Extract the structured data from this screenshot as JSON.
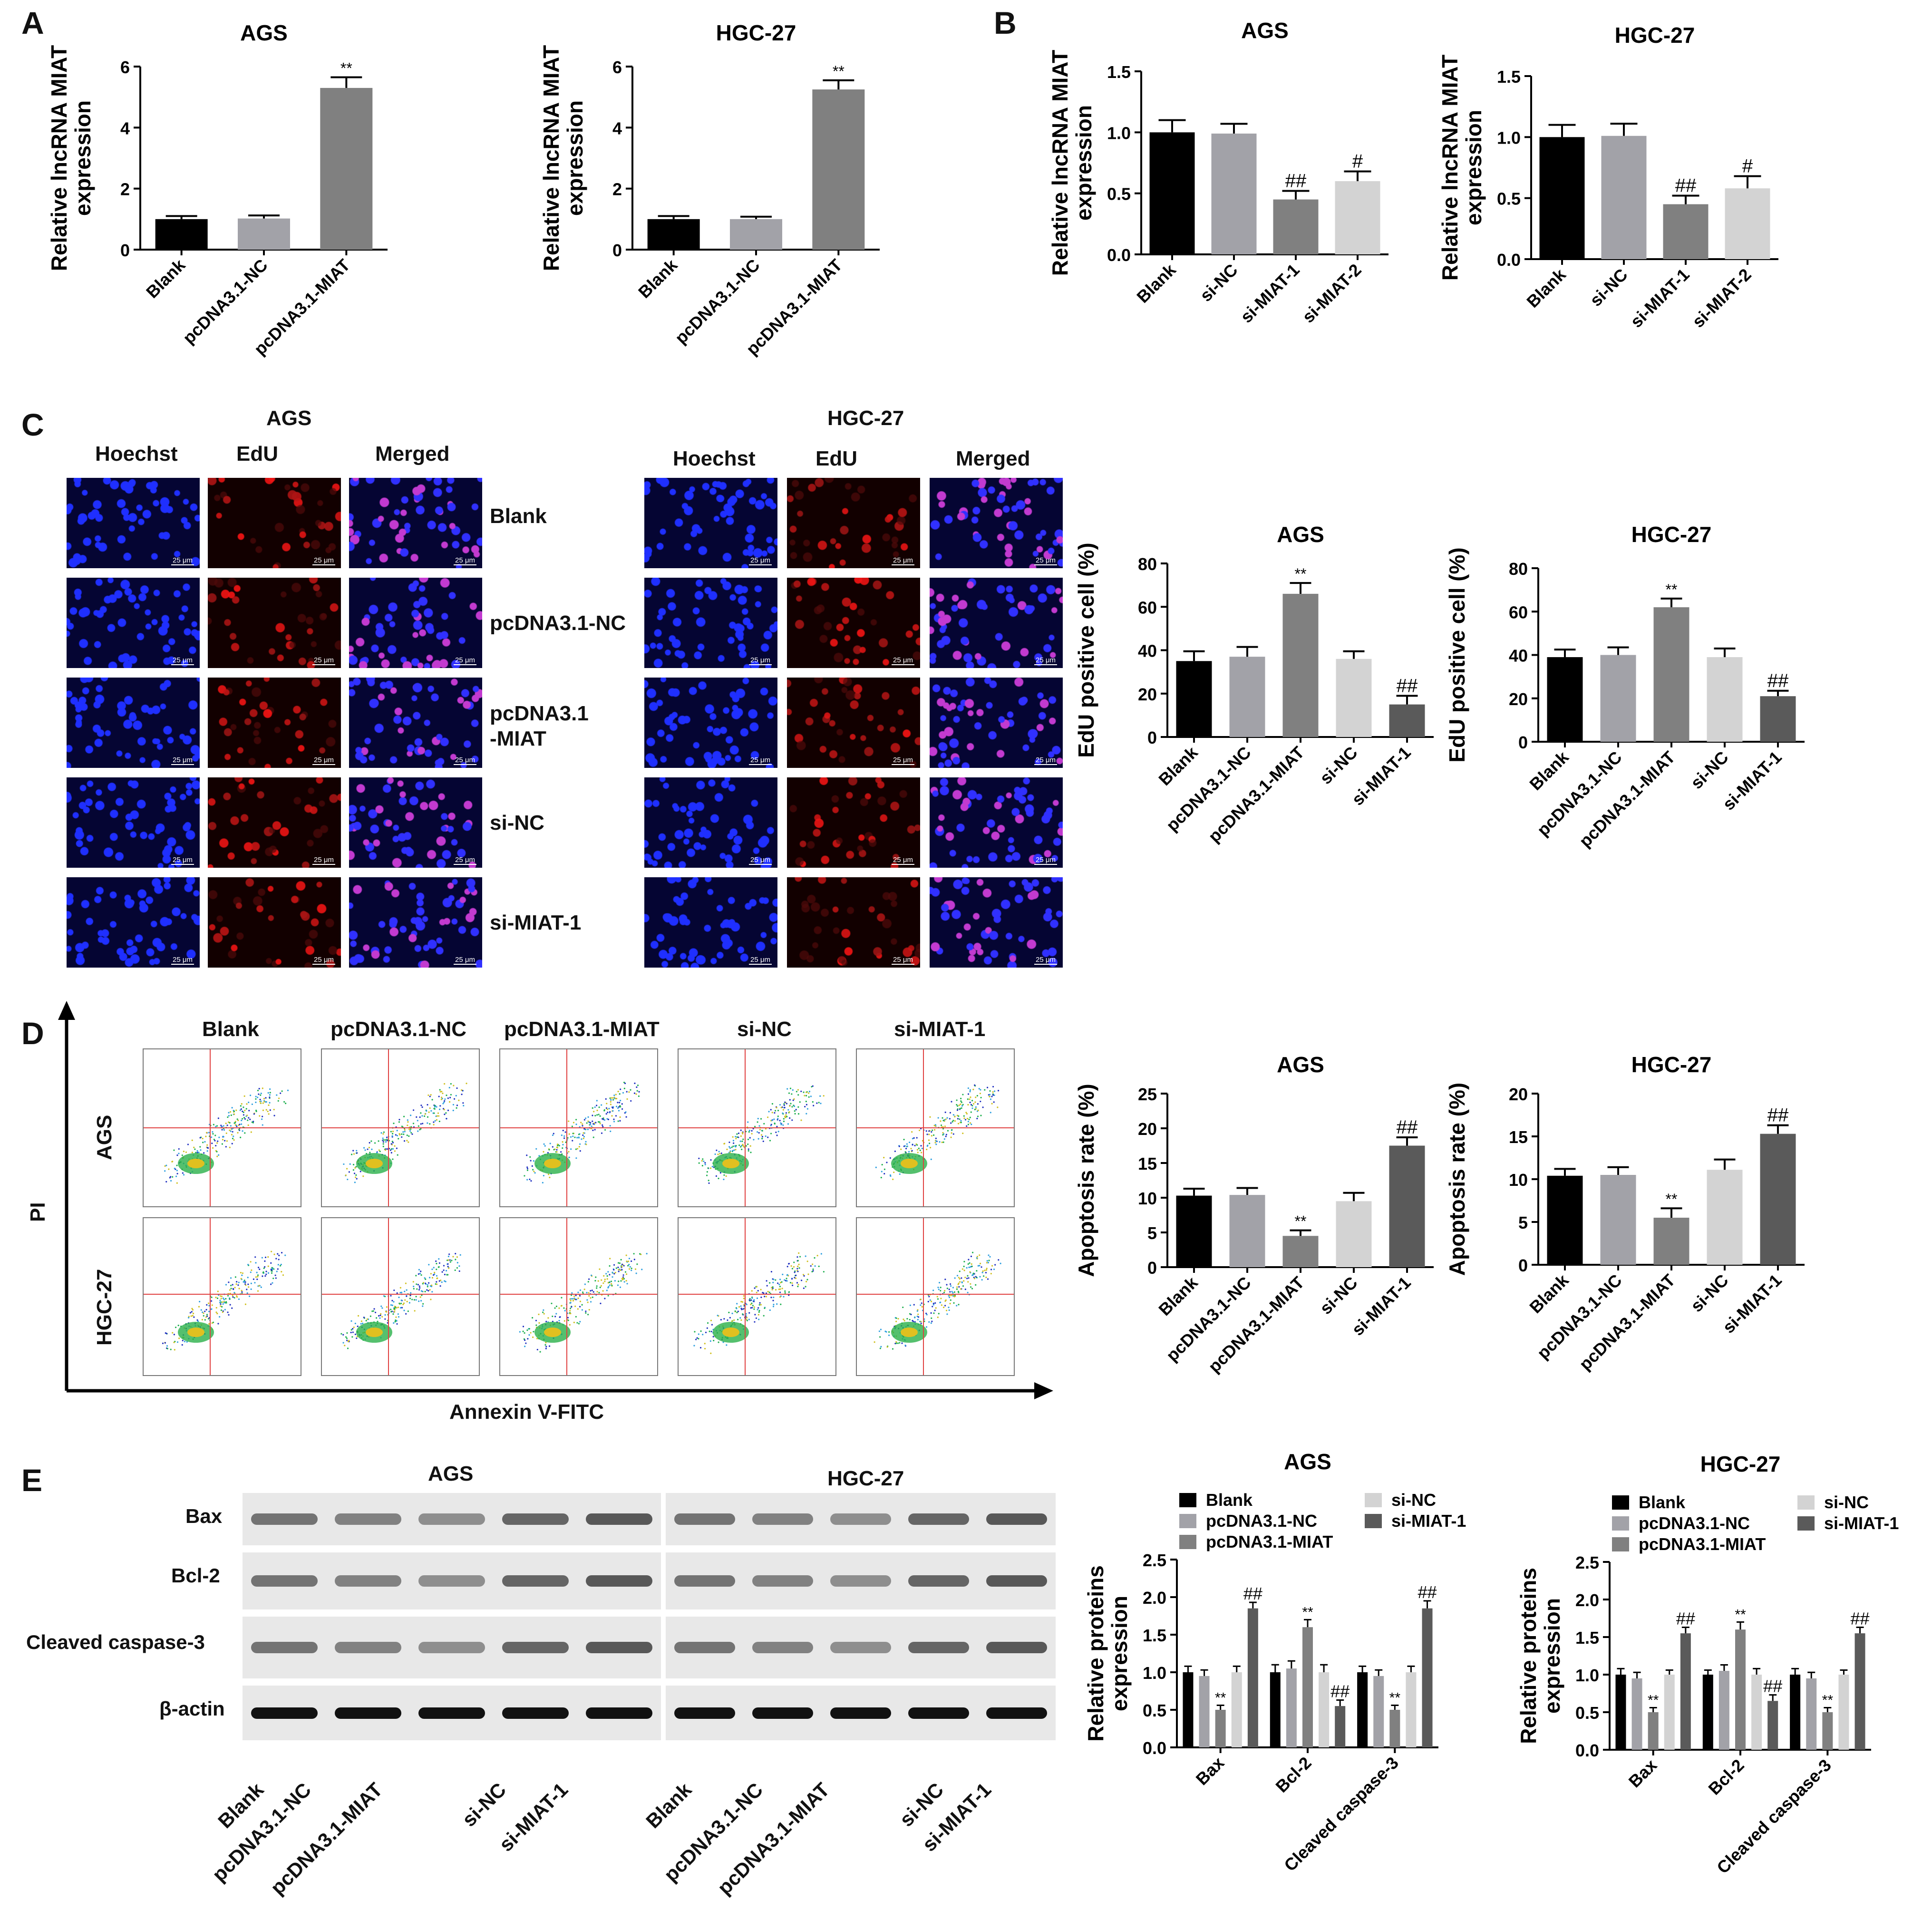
{
  "panels": {
    "A": "A",
    "B": "B",
    "C": "C",
    "D": "D",
    "E": "E"
  },
  "colors": {
    "black": "#000000",
    "gray_mid": "#a2a2a8",
    "gray_dark": "#808080",
    "light": "#d3d3d3",
    "dark2": "#5a5a5a"
  },
  "panel_c": {
    "cell_lines": [
      "AGS",
      "HGC-27"
    ],
    "columns": [
      "Hoechst",
      "EdU",
      "Merged"
    ],
    "rows": [
      "Blank",
      "pcDNA3.1-NC",
      "pcDNA3.1\n-MIAT",
      "si-NC",
      "si-MIAT-1"
    ],
    "scale": "25 μm"
  },
  "panel_d": {
    "groups": [
      "Blank",
      "pcDNA3.1-NC",
      "pcDNA3.1-MIAT",
      "si-NC",
      "si-MIAT-1"
    ],
    "rows": [
      "AGS",
      "HGC-27"
    ],
    "y_axis": "PI",
    "x_axis": "Annexin V-FITC"
  },
  "panel_e": {
    "cell_lines": [
      "AGS",
      "HGC-27"
    ],
    "proteins": [
      "Bax",
      "Bcl-2",
      "Cleaved caspase-3",
      "β-actin"
    ],
    "lanes": [
      "Blank",
      "pcDNA3.1-NC",
      "pcDNA3.1-MIAT",
      "si-NC",
      "si-MIAT-1"
    ]
  },
  "chart_data": [
    {
      "id": "A-AGS",
      "type": "bar",
      "title": "AGS",
      "ylabel": "Relative lncRNA MIAT expression",
      "categories": [
        "Blank",
        "pcDNA3.1-NC",
        "pcDNA3.1-MIAT"
      ],
      "values": [
        1.0,
        1.02,
        5.3
      ],
      "errors": [
        0.1,
        0.1,
        0.35
      ],
      "sig": [
        "",
        "",
        "**"
      ],
      "colors": [
        "#000000",
        "#a2a2a8",
        "#808080"
      ],
      "ylim": [
        0,
        6
      ],
      "yticks": [
        0,
        2,
        4,
        6
      ]
    },
    {
      "id": "A-HGC",
      "type": "bar",
      "title": "HGC-27",
      "ylabel": "Relative lncRNA MIAT expression",
      "categories": [
        "Blank",
        "pcDNA3.1-NC",
        "pcDNA3.1-MIAT"
      ],
      "values": [
        1.0,
        1.0,
        5.25
      ],
      "errors": [
        0.1,
        0.08,
        0.3
      ],
      "sig": [
        "",
        "",
        "**"
      ],
      "colors": [
        "#000000",
        "#a2a2a8",
        "#808080"
      ],
      "ylim": [
        0,
        6
      ],
      "yticks": [
        0,
        2,
        4,
        6
      ]
    },
    {
      "id": "B-AGS",
      "type": "bar",
      "title": "AGS",
      "ylabel": "Relative lncRNA MIAT expression",
      "categories": [
        "Blank",
        "si-NC",
        "si-MIAT-1",
        "si-MIAT-2"
      ],
      "values": [
        1.0,
        0.99,
        0.45,
        0.6
      ],
      "errors": [
        0.1,
        0.08,
        0.07,
        0.08
      ],
      "sig": [
        "",
        "",
        "##",
        "#"
      ],
      "colors": [
        "#000000",
        "#a2a2a8",
        "#808080",
        "#d3d3d3"
      ],
      "ylim": [
        0,
        1.5
      ],
      "yticks": [
        0.0,
        0.5,
        1.0,
        1.5
      ]
    },
    {
      "id": "B-HGC",
      "type": "bar",
      "title": "HGC-27",
      "ylabel": "Relative lncRNA MIAT expression",
      "categories": [
        "Blank",
        "si-NC",
        "si-MIAT-1",
        "si-MIAT-2"
      ],
      "values": [
        1.0,
        1.01,
        0.45,
        0.58
      ],
      "errors": [
        0.1,
        0.1,
        0.07,
        0.1
      ],
      "sig": [
        "",
        "",
        "##",
        "#"
      ],
      "colors": [
        "#000000",
        "#a2a2a8",
        "#808080",
        "#d3d3d3"
      ],
      "ylim": [
        0,
        1.5
      ],
      "yticks": [
        0.0,
        0.5,
        1.0,
        1.5
      ]
    },
    {
      "id": "C-AGS",
      "type": "bar",
      "title": "AGS",
      "ylabel": "EdU positive cell (%)",
      "categories": [
        "Blank",
        "pcDNA3.1-NC",
        "pcDNA3.1-MIAT",
        "si-NC",
        "si-MIAT-1"
      ],
      "values": [
        35,
        37,
        66,
        36,
        15
      ],
      "errors": [
        4.5,
        4.5,
        5,
        3.5,
        4
      ],
      "sig": [
        "",
        "",
        "**",
        "",
        "##"
      ],
      "colors": [
        "#000000",
        "#a2a2a8",
        "#808080",
        "#d3d3d3",
        "#5a5a5a"
      ],
      "ylim": [
        0,
        80
      ],
      "yticks": [
        0,
        20,
        40,
        60,
        80
      ]
    },
    {
      "id": "C-HGC",
      "type": "bar",
      "title": "HGC-27",
      "ylabel": "EdU positive cell (%)",
      "categories": [
        "Blank",
        "pcDNA3.1-NC",
        "pcDNA3.1-MIAT",
        "si-NC",
        "si-MIAT-1"
      ],
      "values": [
        39,
        40,
        62,
        39,
        21
      ],
      "errors": [
        3.5,
        3.5,
        4,
        4,
        2.5
      ],
      "sig": [
        "",
        "",
        "**",
        "",
        "##"
      ],
      "colors": [
        "#000000",
        "#a2a2a8",
        "#808080",
        "#d3d3d3",
        "#5a5a5a"
      ],
      "ylim": [
        0,
        80
      ],
      "yticks": [
        0,
        20,
        40,
        60,
        80
      ]
    },
    {
      "id": "D-AGS",
      "type": "bar",
      "title": "AGS",
      "ylabel": "Apoptosis rate (%)",
      "categories": [
        "Blank",
        "pcDNA3.1-NC",
        "pcDNA3.1-MIAT",
        "si-NC",
        "si-MIAT-1"
      ],
      "values": [
        10.3,
        10.4,
        4.5,
        9.5,
        17.5
      ],
      "errors": [
        1.0,
        1.0,
        0.8,
        1.2,
        1.2
      ],
      "sig": [
        "",
        "",
        "**",
        "",
        "##"
      ],
      "colors": [
        "#000000",
        "#a2a2a8",
        "#808080",
        "#d3d3d3",
        "#5a5a5a"
      ],
      "ylim": [
        0,
        25
      ],
      "yticks": [
        0,
        5,
        10,
        15,
        20,
        25
      ]
    },
    {
      "id": "D-HGC",
      "type": "bar",
      "title": "HGC-27",
      "ylabel": "Apoptosis rate (%)",
      "categories": [
        "Blank",
        "pcDNA3.1-NC",
        "pcDNA3.1-MIAT",
        "si-NC",
        "si-MIAT-1"
      ],
      "values": [
        10.4,
        10.5,
        5.5,
        11.1,
        15.3
      ],
      "errors": [
        0.8,
        0.9,
        1.1,
        1.2,
        1.0
      ],
      "sig": [
        "",
        "",
        "**",
        "",
        "##"
      ],
      "colors": [
        "#000000",
        "#a2a2a8",
        "#808080",
        "#d3d3d3",
        "#5a5a5a"
      ],
      "ylim": [
        0,
        20
      ],
      "yticks": [
        0,
        5,
        10,
        15,
        20
      ]
    },
    {
      "id": "E-AGS",
      "type": "grouped-bar",
      "title": "AGS",
      "ylabel": "Relative proteins expression",
      "categories": [
        "Bax",
        "Bcl-2",
        "Cleaved caspase-3"
      ],
      "series": [
        {
          "name": "Blank",
          "values": [
            1.0,
            1.0,
            1.0
          ],
          "errors": [
            0.08,
            0.1,
            0.08
          ],
          "sig": [
            "",
            "",
            ""
          ]
        },
        {
          "name": "pcDNA3.1-NC",
          "values": [
            0.95,
            1.05,
            0.95
          ],
          "errors": [
            0.08,
            0.1,
            0.08
          ],
          "sig": [
            "",
            "",
            ""
          ]
        },
        {
          "name": "pcDNA3.1-MIAT",
          "values": [
            0.5,
            1.6,
            0.5
          ],
          "errors": [
            0.06,
            0.1,
            0.06
          ],
          "sig": [
            "**",
            "**",
            "**"
          ]
        },
        {
          "name": "si-NC",
          "values": [
            1.0,
            1.0,
            1.0
          ],
          "errors": [
            0.08,
            0.1,
            0.08
          ],
          "sig": [
            "",
            "",
            ""
          ]
        },
        {
          "name": "si-MIAT-1",
          "values": [
            1.85,
            0.55,
            1.85
          ],
          "errors": [
            0.08,
            0.08,
            0.1
          ],
          "sig": [
            "##",
            "##",
            "##"
          ]
        }
      ],
      "colors": [
        "#000000",
        "#a2a2a8",
        "#808080",
        "#d3d3d3",
        "#5a5a5a"
      ],
      "ylim": [
        0,
        2.5
      ],
      "yticks": [
        0.0,
        0.5,
        1.0,
        1.5,
        2.0,
        2.5
      ]
    },
    {
      "id": "E-HGC",
      "type": "grouped-bar",
      "title": "HGC-27",
      "ylabel": "Relative proteins expression",
      "categories": [
        "Bax",
        "Bcl-2",
        "Cleaved caspase-3"
      ],
      "series": [
        {
          "name": "Blank",
          "values": [
            1.0,
            1.0,
            1.0
          ],
          "errors": [
            0.08,
            0.06,
            0.08
          ],
          "sig": [
            "",
            "",
            ""
          ]
        },
        {
          "name": "pcDNA3.1-NC",
          "values": [
            0.95,
            1.05,
            0.95
          ],
          "errors": [
            0.08,
            0.08,
            0.08
          ],
          "sig": [
            "",
            "",
            ""
          ]
        },
        {
          "name": "pcDNA3.1-MIAT",
          "values": [
            0.5,
            1.6,
            0.5
          ],
          "errors": [
            0.06,
            0.1,
            0.06
          ],
          "sig": [
            "**",
            "**",
            "**"
          ]
        },
        {
          "name": "si-NC",
          "values": [
            1.0,
            1.0,
            1.0
          ],
          "errors": [
            0.06,
            0.08,
            0.06
          ],
          "sig": [
            "",
            "",
            ""
          ]
        },
        {
          "name": "si-MIAT-1",
          "values": [
            1.55,
            0.65,
            1.55
          ],
          "errors": [
            0.08,
            0.08,
            0.08
          ],
          "sig": [
            "##",
            "##",
            "##"
          ]
        }
      ],
      "colors": [
        "#000000",
        "#a2a2a8",
        "#808080",
        "#d3d3d3",
        "#5a5a5a"
      ],
      "ylim": [
        0,
        2.5
      ],
      "yticks": [
        0.0,
        0.5,
        1.0,
        1.5,
        2.0,
        2.5
      ]
    }
  ]
}
